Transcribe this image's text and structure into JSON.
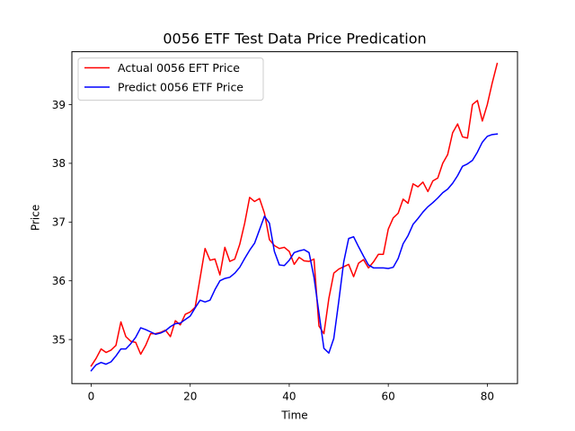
{
  "chart_data": {
    "type": "line",
    "title": "0056 ETF Test Data Price Predication",
    "xlabel": "Time",
    "ylabel": "Price",
    "xlim": [
      -3.9,
      86.1
    ],
    "ylim": [
      34.25,
      39.9
    ],
    "xticks": [
      "0",
      "20",
      "40",
      "60",
      "80"
    ],
    "xtick_values": [
      0,
      20,
      40,
      60,
      80
    ],
    "yticks": [
      "35",
      "36",
      "37",
      "38",
      "39"
    ],
    "ytick_values": [
      35,
      36,
      37,
      38,
      39
    ],
    "grid": false,
    "legend_position": "upper-left",
    "series": [
      {
        "name": "Actual 0056 EFT Price",
        "color": "#ff0000",
        "x": [
          0,
          1,
          2,
          3,
          4,
          5,
          6,
          7,
          8,
          9,
          10,
          11,
          12,
          13,
          14,
          15,
          16,
          17,
          18,
          19,
          20,
          21,
          22,
          23,
          24,
          25,
          26,
          27,
          28,
          29,
          30,
          31,
          32,
          33,
          34,
          35,
          36,
          37,
          38,
          39,
          40,
          41,
          42,
          43,
          44,
          45,
          46,
          47,
          48,
          49,
          50,
          51,
          52,
          53,
          54,
          55,
          56,
          57,
          58,
          59,
          60,
          61,
          62,
          63,
          64,
          65,
          66,
          67,
          68,
          69,
          70,
          71,
          72,
          73,
          74,
          75,
          76,
          77,
          78,
          79,
          80,
          81,
          82
        ],
        "y": [
          34.55,
          34.68,
          34.84,
          34.78,
          34.82,
          34.9,
          35.3,
          35.05,
          34.97,
          34.95,
          34.75,
          34.9,
          35.1,
          35.1,
          35.12,
          35.16,
          35.05,
          35.32,
          35.25,
          35.43,
          35.47,
          35.55,
          36.05,
          36.55,
          36.35,
          36.37,
          36.1,
          36.57,
          36.33,
          36.37,
          36.62,
          36.98,
          37.42,
          37.35,
          37.4,
          37.15,
          36.7,
          36.6,
          36.55,
          36.57,
          36.5,
          36.28,
          36.4,
          36.34,
          36.33,
          36.37,
          35.23,
          35.1,
          35.7,
          36.13,
          36.2,
          36.24,
          36.28,
          36.07,
          36.3,
          36.36,
          36.22,
          36.32,
          36.45,
          36.45,
          36.88,
          37.07,
          37.15,
          37.39,
          37.32,
          37.65,
          37.6,
          37.68,
          37.52,
          37.7,
          37.75,
          38.0,
          38.15,
          38.52,
          38.67,
          38.45,
          38.43,
          39.0,
          39.07,
          38.72,
          39.0,
          39.37,
          39.7
        ]
      },
      {
        "name": "Predict 0056 ETF Price",
        "color": "#0000ff",
        "x": [
          0,
          1,
          2,
          3,
          4,
          5,
          6,
          7,
          8,
          9,
          10,
          11,
          12,
          13,
          14,
          15,
          16,
          17,
          18,
          19,
          20,
          21,
          22,
          23,
          24,
          25,
          26,
          27,
          28,
          29,
          30,
          31,
          32,
          33,
          34,
          35,
          36,
          37,
          38,
          39,
          40,
          41,
          42,
          43,
          44,
          45,
          46,
          47,
          48,
          49,
          50,
          51,
          52,
          53,
          54,
          55,
          56,
          57,
          58,
          59,
          60,
          61,
          62,
          63,
          64,
          65,
          66,
          67,
          68,
          69,
          70,
          71,
          72,
          73,
          74,
          75,
          76,
          77,
          78,
          79,
          80,
          81,
          82
        ],
        "y": [
          34.47,
          34.57,
          34.61,
          34.58,
          34.62,
          34.72,
          34.84,
          34.84,
          34.93,
          35.04,
          35.2,
          35.17,
          35.13,
          35.09,
          35.11,
          35.15,
          35.22,
          35.27,
          35.28,
          35.34,
          35.4,
          35.54,
          35.67,
          35.64,
          35.67,
          35.85,
          36.0,
          36.04,
          36.06,
          36.13,
          36.23,
          36.38,
          36.52,
          36.64,
          36.87,
          37.1,
          36.98,
          36.5,
          36.27,
          36.26,
          36.35,
          36.48,
          36.51,
          36.53,
          36.48,
          36.06,
          35.45,
          34.85,
          34.77,
          35.02,
          35.65,
          36.32,
          36.72,
          36.75,
          36.58,
          36.42,
          36.27,
          36.22,
          36.22,
          36.22,
          36.21,
          36.23,
          36.38,
          36.63,
          36.77,
          36.96,
          37.06,
          37.17,
          37.26,
          37.33,
          37.41,
          37.5,
          37.56,
          37.66,
          37.79,
          37.95,
          37.99,
          38.05,
          38.19,
          38.36,
          38.46,
          38.49,
          38.5
        ]
      }
    ]
  }
}
